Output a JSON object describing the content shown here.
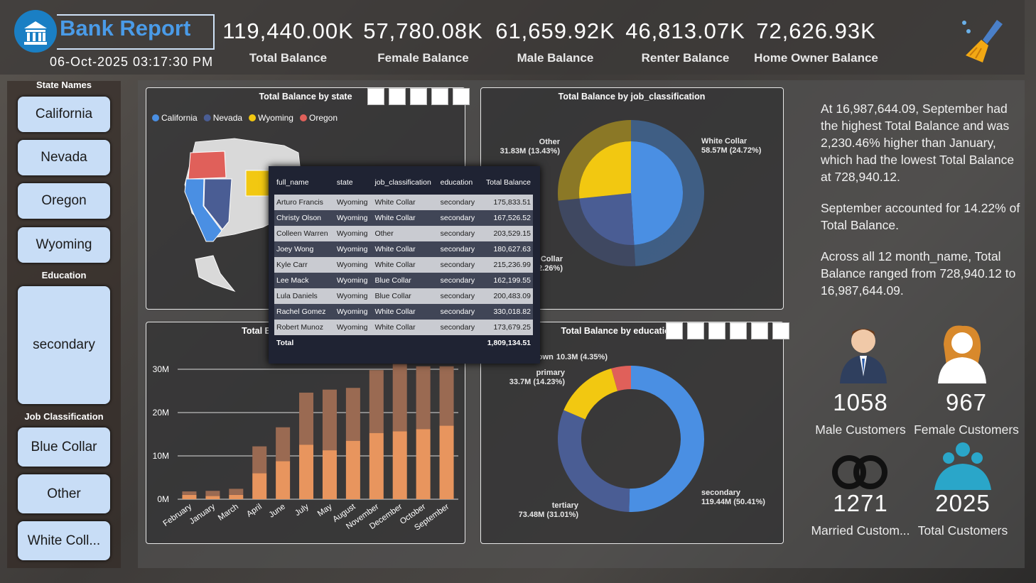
{
  "header": {
    "title": "Bank Report",
    "datetime": "06-Oct-2025 03:17:30 PM"
  },
  "kpis": [
    {
      "value": "119,440.00K",
      "label": "Total Balance"
    },
    {
      "value": "57,780.08K",
      "label": "Female Balance"
    },
    {
      "value": "61,659.92K",
      "label": "Male Balance"
    },
    {
      "value": "46,813.07K",
      "label": "Renter Balance"
    },
    {
      "value": "72,626.93K",
      "label": "Home Owner Balance"
    }
  ],
  "slicers": [
    {
      "title": "State Names",
      "items": [
        "California",
        "Nevada",
        "Oregon",
        "Wyoming"
      ]
    },
    {
      "title": "Education",
      "items": [
        "secondary"
      ]
    },
    {
      "title": "Job Classification",
      "items": [
        "Blue Collar",
        "Other",
        "White Coll..."
      ]
    }
  ],
  "map_chart": {
    "type": "map",
    "title": "Total Balance by state",
    "legend": [
      {
        "name": "California",
        "color": "#4a8fe3"
      },
      {
        "name": "Nevada",
        "color": "#4a5d94"
      },
      {
        "name": "Wyoming",
        "color": "#f2c811"
      },
      {
        "name": "Oregon",
        "color": "#e0605a"
      }
    ]
  },
  "job_chart": {
    "type": "pie",
    "title": "Total Balance by job_classification",
    "categories": [
      "White Collar",
      "Blue Collar",
      "Other"
    ],
    "values": [
      58.57,
      29.04,
      31.83
    ],
    "value_labels": [
      "58.57M (24.72%)",
      "29.04M (12.26%)",
      "31.83M (13.43%)"
    ],
    "colors": [
      "#4a8fe3",
      "#4a5d94",
      "#f2c811"
    ]
  },
  "month_chart": {
    "type": "bar",
    "title": "Total Balance by month_name",
    "categories": [
      "February",
      "January",
      "March",
      "April",
      "June",
      "July",
      "May",
      "August",
      "November",
      "December",
      "October",
      "September"
    ],
    "series": [
      {
        "color": "#e8955e",
        "values": [
          1.0,
          0.73,
          1.0,
          6.0,
          8.8,
          12.6,
          11.3,
          13.5,
          15.3,
          15.7,
          16.2,
          16.99
        ]
      },
      {
        "color": "#9a6a52",
        "values": [
          0.8,
          1.2,
          1.4,
          6.2,
          7.8,
          12.0,
          14.0,
          12.2,
          14.5,
          15.5,
          14.5,
          13.7
        ]
      }
    ],
    "ylim": [
      0,
      32
    ],
    "yticks": [
      {
        "value": 0,
        "label": "0M"
      },
      {
        "value": 10,
        "label": "10M"
      },
      {
        "value": 20,
        "label": "20M"
      },
      {
        "value": 30,
        "label": "30M"
      }
    ],
    "grid": true
  },
  "edu_chart": {
    "type": "donut",
    "title": "Total Balance by education",
    "categories": [
      "secondary",
      "tertiary",
      "primary",
      "unknown"
    ],
    "values": [
      119.44,
      73.48,
      33.7,
      10.3
    ],
    "value_labels": [
      "119.44M (50.41%)",
      "73.48M (31.01%)",
      "33.7M (14.23%)",
      "10.3M (4.35%)"
    ],
    "colors": [
      "#4a8fe3",
      "#4a5d94",
      "#f2c811",
      "#e0605a"
    ]
  },
  "tooltip": {
    "columns": [
      "full_name",
      "state",
      "job_classification",
      "education",
      "Total Balance"
    ],
    "rows": [
      [
        "Arturo Francis",
        "Wyoming",
        "White Collar",
        "secondary",
        "175,833.51"
      ],
      [
        "Christy Olson",
        "Wyoming",
        "White Collar",
        "secondary",
        "167,526.52"
      ],
      [
        "Colleen Warren",
        "Wyoming",
        "Other",
        "secondary",
        "203,529.15"
      ],
      [
        "Joey Wong",
        "Wyoming",
        "White Collar",
        "secondary",
        "180,627.63"
      ],
      [
        "Kyle Carr",
        "Wyoming",
        "White Collar",
        "secondary",
        "215,236.99"
      ],
      [
        "Lee Mack",
        "Wyoming",
        "Blue Collar",
        "secondary",
        "162,199.55"
      ],
      [
        "Lula Daniels",
        "Wyoming",
        "Blue Collar",
        "secondary",
        "200,483.09"
      ],
      [
        "Rachel Gomez",
        "Wyoming",
        "White Collar",
        "secondary",
        "330,018.82"
      ],
      [
        "Robert Munoz",
        "Wyoming",
        "White Collar",
        "secondary",
        "173,679.25"
      ]
    ],
    "total": [
      "Total",
      "1,809,134.51"
    ]
  },
  "narrative": [
    "At 16,987,644.09, September had the highest Total Balance and was 2,230.46% higher than January, which had the lowest Total Balance at 728,940.12.",
    "September accounted for 14.22% of Total Balance.",
    "Across all 12 month_name, Total Balance ranged from 728,940.12 to 16,987,644.09."
  ],
  "customers": [
    {
      "value": "1058",
      "label": "Male Customers"
    },
    {
      "value": "967",
      "label": "Female Customers"
    },
    {
      "value": "1271",
      "label": "Married Custom..."
    },
    {
      "value": "2025",
      "label": "Total Customers"
    }
  ]
}
